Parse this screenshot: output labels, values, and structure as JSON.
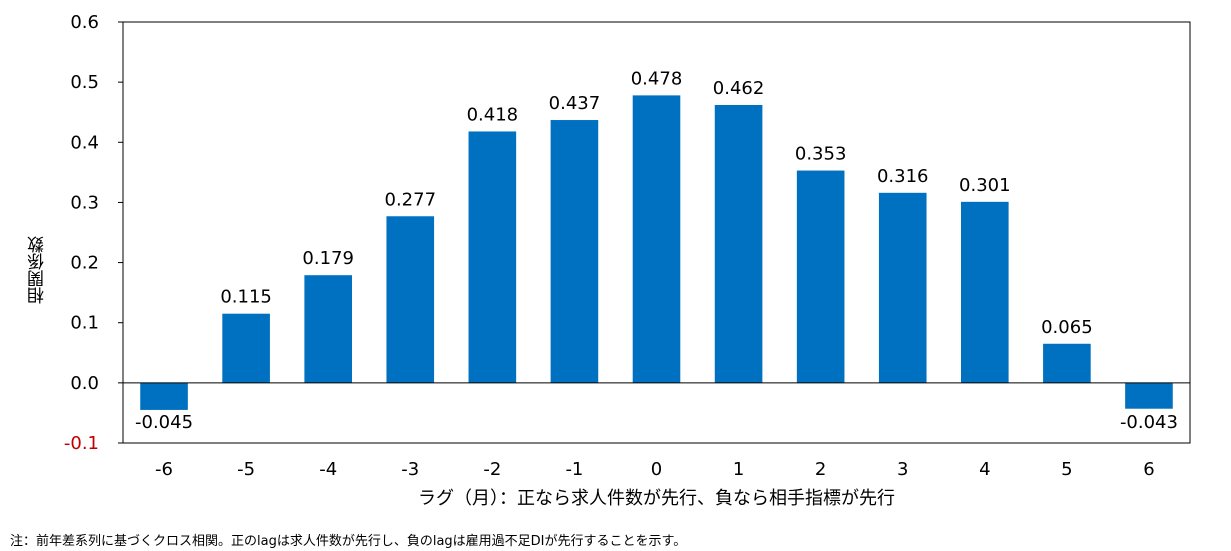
{
  "chart_data": {
    "type": "bar",
    "categories": [
      "-6",
      "-5",
      "-4",
      "-3",
      "-2",
      "-1",
      "0",
      "1",
      "2",
      "3",
      "4",
      "5",
      "6"
    ],
    "values": [
      -0.045,
      0.115,
      0.179,
      0.277,
      0.418,
      0.437,
      0.478,
      0.462,
      0.353,
      0.316,
      0.301,
      0.065,
      -0.043
    ],
    "value_labels": [
      "-0.045",
      "0.115",
      "0.179",
      "0.277",
      "0.418",
      "0.437",
      "0.478",
      "0.462",
      "0.353",
      "0.316",
      "0.301",
      "0.065",
      "-0.043"
    ],
    "y_ticks": [
      -0.1,
      0.0,
      0.1,
      0.2,
      0.3,
      0.4,
      0.5,
      0.6
    ],
    "y_tick_labels": [
      "-0.1",
      "0.0",
      "0.1",
      "0.2",
      "0.3",
      "0.4",
      "0.5",
      "0.6"
    ],
    "ylim": [
      -0.1,
      0.6
    ],
    "xlabel": "ラグ（月）：正なら求人件数が先行、負なら相手指標が先行",
    "ylabel": "相関係数",
    "grid": false,
    "legend": "none",
    "bar_color": "#0070C0",
    "negative_tick_color": "#C00000"
  },
  "note": "注：前年差系列に基づくクロス相関。正のlagは求人件数が先行し、負のlagは雇用過不足DIが先行することを示す。"
}
